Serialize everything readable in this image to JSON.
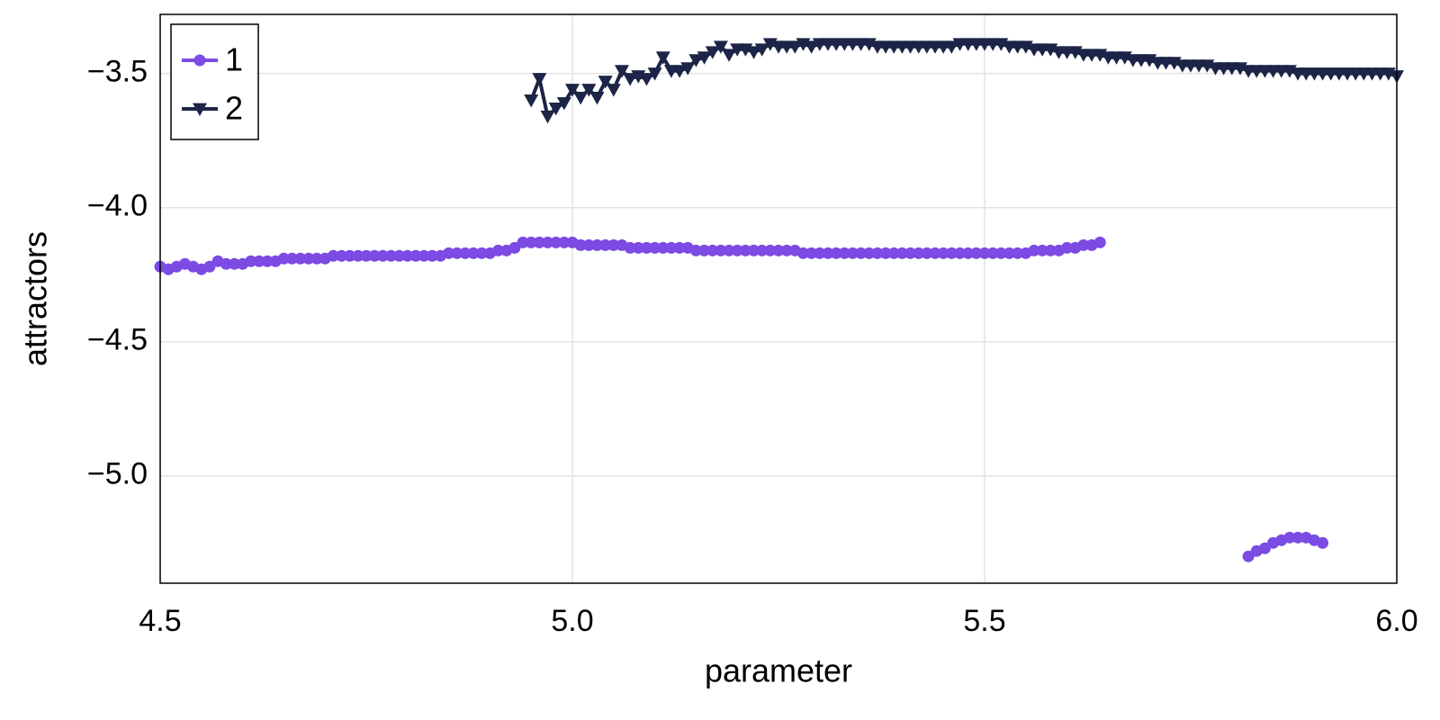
{
  "chart_data": {
    "type": "line",
    "x_label": "parameter",
    "y_label": "attractors",
    "x": [
      4.5,
      4.51,
      4.52,
      4.53,
      4.54,
      4.55,
      4.56,
      4.57,
      4.58,
      4.59,
      4.6,
      4.61,
      4.62,
      4.63,
      4.64,
      4.65,
      4.66,
      4.67,
      4.68,
      4.69,
      4.7,
      4.71,
      4.72,
      4.73,
      4.74,
      4.75,
      4.76,
      4.77,
      4.78,
      4.79,
      4.8,
      4.81,
      4.82,
      4.83,
      4.84,
      4.85,
      4.86,
      4.87,
      4.88,
      4.89,
      4.9,
      4.91,
      4.92,
      4.93,
      4.94,
      4.95,
      4.96,
      4.97,
      4.98,
      4.99,
      5.0,
      5.01,
      5.02,
      5.03,
      5.04,
      5.05,
      5.06,
      5.07,
      5.08,
      5.09,
      5.1,
      5.11,
      5.12,
      5.13,
      5.14,
      5.15,
      5.16,
      5.17,
      5.18,
      5.19,
      5.2,
      5.21,
      5.22,
      5.23,
      5.24,
      5.25,
      5.26,
      5.27,
      5.28,
      5.29,
      5.3,
      5.31,
      5.32,
      5.33,
      5.34,
      5.35,
      5.36,
      5.37,
      5.38,
      5.39,
      5.4,
      5.41,
      5.42,
      5.43,
      5.44,
      5.45,
      5.46,
      5.47,
      5.48,
      5.49,
      5.5,
      5.51,
      5.52,
      5.53,
      5.54,
      5.55,
      5.56,
      5.57,
      5.58,
      5.59,
      5.6,
      5.61,
      5.62,
      5.63,
      5.64,
      5.65,
      5.66,
      5.67,
      5.68,
      5.69,
      5.7,
      5.71,
      5.72,
      5.73,
      5.74,
      5.75,
      5.76,
      5.77,
      5.78,
      5.79,
      5.8,
      5.81,
      5.82,
      5.83,
      5.84,
      5.85,
      5.86,
      5.87,
      5.88,
      5.89,
      5.9,
      5.91,
      5.92,
      5.93,
      5.94,
      5.95,
      5.96,
      5.97,
      5.98,
      5.99,
      6.0
    ],
    "series": [
      {
        "name": "1",
        "color": "#7b4be3",
        "marker": "circle",
        "values": [
          -4.22,
          -4.23,
          -4.22,
          -4.21,
          -4.22,
          -4.23,
          -4.22,
          -4.2,
          -4.21,
          -4.21,
          -4.21,
          -4.2,
          -4.2,
          -4.2,
          -4.2,
          -4.19,
          -4.19,
          -4.19,
          -4.19,
          -4.19,
          -4.19,
          -4.18,
          -4.18,
          -4.18,
          -4.18,
          -4.18,
          -4.18,
          -4.18,
          -4.18,
          -4.18,
          -4.18,
          -4.18,
          -4.18,
          -4.18,
          -4.18,
          -4.17,
          -4.17,
          -4.17,
          -4.17,
          -4.17,
          -4.17,
          -4.16,
          -4.16,
          -4.15,
          -4.13,
          -4.13,
          -4.13,
          -4.13,
          -4.13,
          -4.13,
          -4.13,
          -4.14,
          -4.14,
          -4.14,
          -4.14,
          -4.14,
          -4.14,
          -4.15,
          -4.15,
          -4.15,
          -4.15,
          -4.15,
          -4.15,
          -4.15,
          -4.15,
          -4.16,
          -4.16,
          -4.16,
          -4.16,
          -4.16,
          -4.16,
          -4.16,
          -4.16,
          -4.16,
          -4.16,
          -4.16,
          -4.16,
          -4.16,
          -4.17,
          -4.17,
          -4.17,
          -4.17,
          -4.17,
          -4.17,
          -4.17,
          -4.17,
          -4.17,
          -4.17,
          -4.17,
          -4.17,
          -4.17,
          -4.17,
          -4.17,
          -4.17,
          -4.17,
          -4.17,
          -4.17,
          -4.17,
          -4.17,
          -4.17,
          -4.17,
          -4.17,
          -4.17,
          -4.17,
          -4.17,
          -4.17,
          -4.16,
          -4.16,
          -4.16,
          -4.16,
          -4.15,
          -4.15,
          -4.14,
          -4.14,
          -4.13,
          null,
          null,
          null,
          null,
          null,
          null,
          null,
          null,
          null,
          null,
          null,
          null,
          null,
          null,
          null,
          null,
          null,
          -5.3,
          -5.28,
          -5.27,
          -5.25,
          -5.24,
          -5.23,
          -5.23,
          -5.23,
          -5.24,
          -5.25,
          null,
          null,
          null,
          null,
          null,
          null,
          null,
          null,
          null
        ]
      },
      {
        "name": "2",
        "color": "#1c2447",
        "marker": "triangle-down",
        "values": [
          null,
          null,
          null,
          null,
          null,
          null,
          null,
          null,
          null,
          null,
          null,
          null,
          null,
          null,
          null,
          null,
          null,
          null,
          null,
          null,
          null,
          null,
          null,
          null,
          null,
          null,
          null,
          null,
          null,
          null,
          null,
          null,
          null,
          null,
          null,
          null,
          null,
          null,
          null,
          null,
          null,
          null,
          null,
          null,
          null,
          -3.6,
          -3.52,
          -3.66,
          -3.63,
          -3.61,
          -3.56,
          -3.59,
          -3.56,
          -3.59,
          -3.53,
          -3.56,
          -3.49,
          -3.52,
          -3.51,
          -3.52,
          -3.5,
          -3.44,
          -3.49,
          -3.49,
          -3.48,
          -3.45,
          -3.44,
          -3.42,
          -3.4,
          -3.43,
          -3.41,
          -3.41,
          -3.42,
          -3.41,
          -3.39,
          -3.4,
          -3.4,
          -3.4,
          -3.39,
          -3.4,
          -3.39,
          -3.39,
          -3.39,
          -3.39,
          -3.39,
          -3.39,
          -3.39,
          -3.4,
          -3.4,
          -3.4,
          -3.4,
          -3.4,
          -3.4,
          -3.4,
          -3.4,
          -3.4,
          -3.4,
          -3.39,
          -3.39,
          -3.39,
          -3.39,
          -3.39,
          -3.39,
          -3.4,
          -3.4,
          -3.4,
          -3.41,
          -3.41,
          -3.41,
          -3.42,
          -3.42,
          -3.42,
          -3.43,
          -3.43,
          -3.43,
          -3.44,
          -3.44,
          -3.44,
          -3.45,
          -3.45,
          -3.45,
          -3.46,
          -3.46,
          -3.46,
          -3.47,
          -3.47,
          -3.47,
          -3.47,
          -3.48,
          -3.48,
          -3.48,
          -3.48,
          -3.49,
          -3.49,
          -3.49,
          -3.49,
          -3.49,
          -3.49,
          -3.5,
          -3.5,
          -3.5,
          -3.5,
          -3.5,
          -3.5,
          -3.5,
          -3.5,
          -3.5,
          -3.5,
          -3.5,
          -3.5,
          -3.51
        ]
      }
    ],
    "xlim": [
      4.5,
      6.0
    ],
    "ylim": [
      -5.4,
      -3.28
    ],
    "xticks": [
      {
        "value": 4.5,
        "label": "4.5"
      },
      {
        "value": 5,
        "label": "5.0"
      },
      {
        "value": 5.5,
        "label": "5.5"
      },
      {
        "value": 6,
        "label": "6.0"
      }
    ],
    "yticks": [
      {
        "value": -5,
        "label": "−5.0"
      },
      {
        "value": -4.5,
        "label": "−4.5"
      },
      {
        "value": -4,
        "label": "−4.0"
      },
      {
        "value": -3.5,
        "label": "−3.5"
      }
    ],
    "grid": true,
    "legend": "upper-left"
  }
}
